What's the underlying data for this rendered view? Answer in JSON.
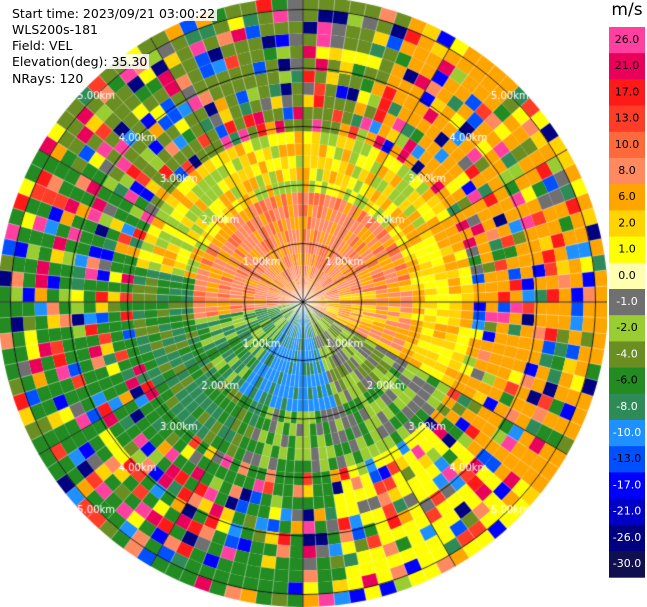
{
  "header": {
    "start_time": "Start time: 2023/09/21 03:00:22",
    "instrument": "WLS200s-181",
    "field": "Field: VEL",
    "elevation": "Elevation(deg): 35.30",
    "nrays": "NRays: 120"
  },
  "range_rings": [
    "1.00km",
    "2.00km",
    "3.00km",
    "4.00km",
    "5.00km"
  ],
  "colorbar": {
    "unit": "m/s",
    "ticks": [
      "26.0",
      "21.0",
      "17.0",
      "13.0",
      "10.0",
      "8.0",
      "6.0",
      "2.0",
      "1.0",
      "0.0",
      "-1.0",
      "-2.0",
      "-4.0",
      "-6.0",
      "-8.0",
      "-10.0",
      "-13.0",
      "-17.0",
      "-21.0",
      "-26.0",
      "-30.0"
    ],
    "colors": [
      "#ff40a0",
      "#e8005a",
      "#ff1a1a",
      "#ff3c28",
      "#ff6a3c",
      "#ff8a60",
      "#ffa500",
      "#ffd400",
      "#ffff00",
      "#ffffb0",
      "#707070",
      "#9acd32",
      "#6b8e23",
      "#228b22",
      "#2e8b57",
      "#1e90ff",
      "#0050ff",
      "#0000ff",
      "#0000c8",
      "#000080",
      "#101050"
    ]
  }
}
